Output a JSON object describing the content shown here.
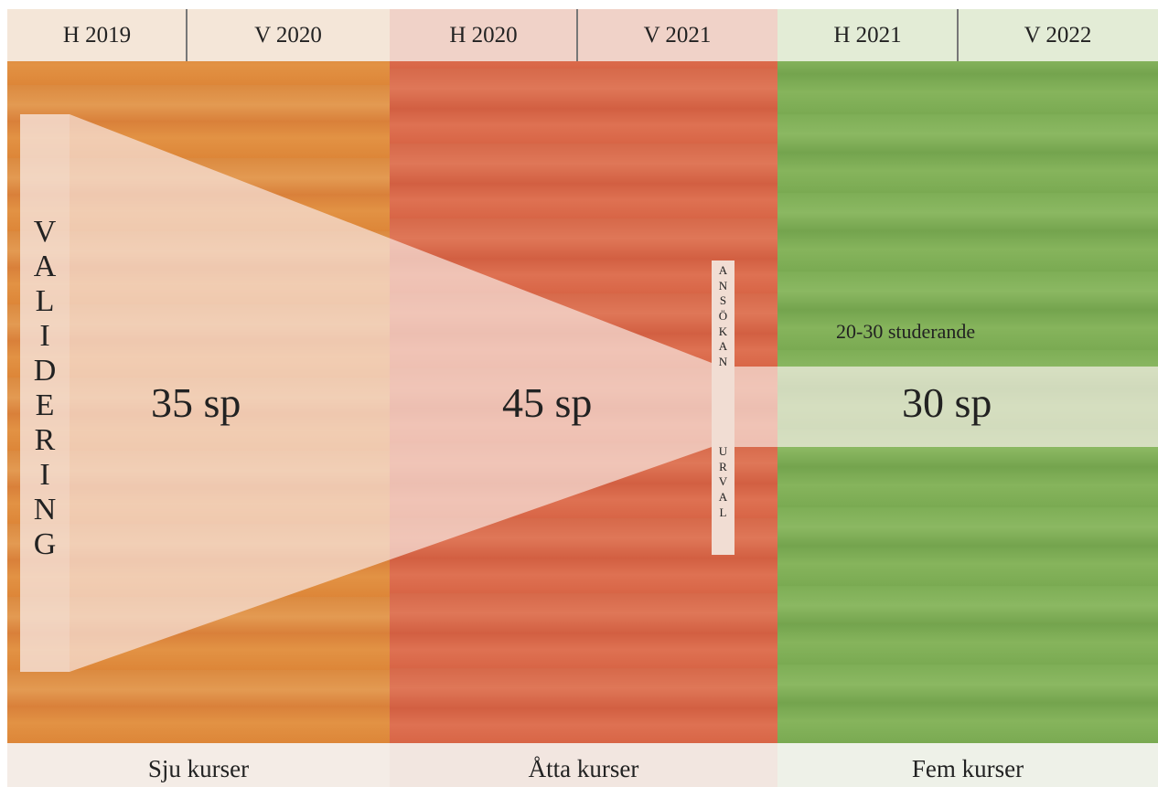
{
  "periods": [
    "H 2019",
    "V 2020",
    "H 2020",
    "V 2021",
    "H 2021",
    "V 2022"
  ],
  "sections": [
    {
      "credits": "35 sp",
      "courses": "Sju kurser",
      "color": "#e08a3a"
    },
    {
      "credits": "45 sp",
      "courses": "Åtta kurser",
      "color": "#d9694a"
    },
    {
      "credits": "30 sp",
      "courses": "Fem kurser",
      "color": "#7fae55"
    }
  ],
  "validering": "VALIDERING",
  "ansokan": "ANSÖKAN",
  "urval": "URVAL",
  "students": "20-30 studerande",
  "colors": {
    "header_light": "#f4e6d8",
    "header_red": "#f0d2c8",
    "header_green": "#e3ecd6",
    "funnel": "#f6e3dc",
    "footer": "#f4ece6"
  }
}
